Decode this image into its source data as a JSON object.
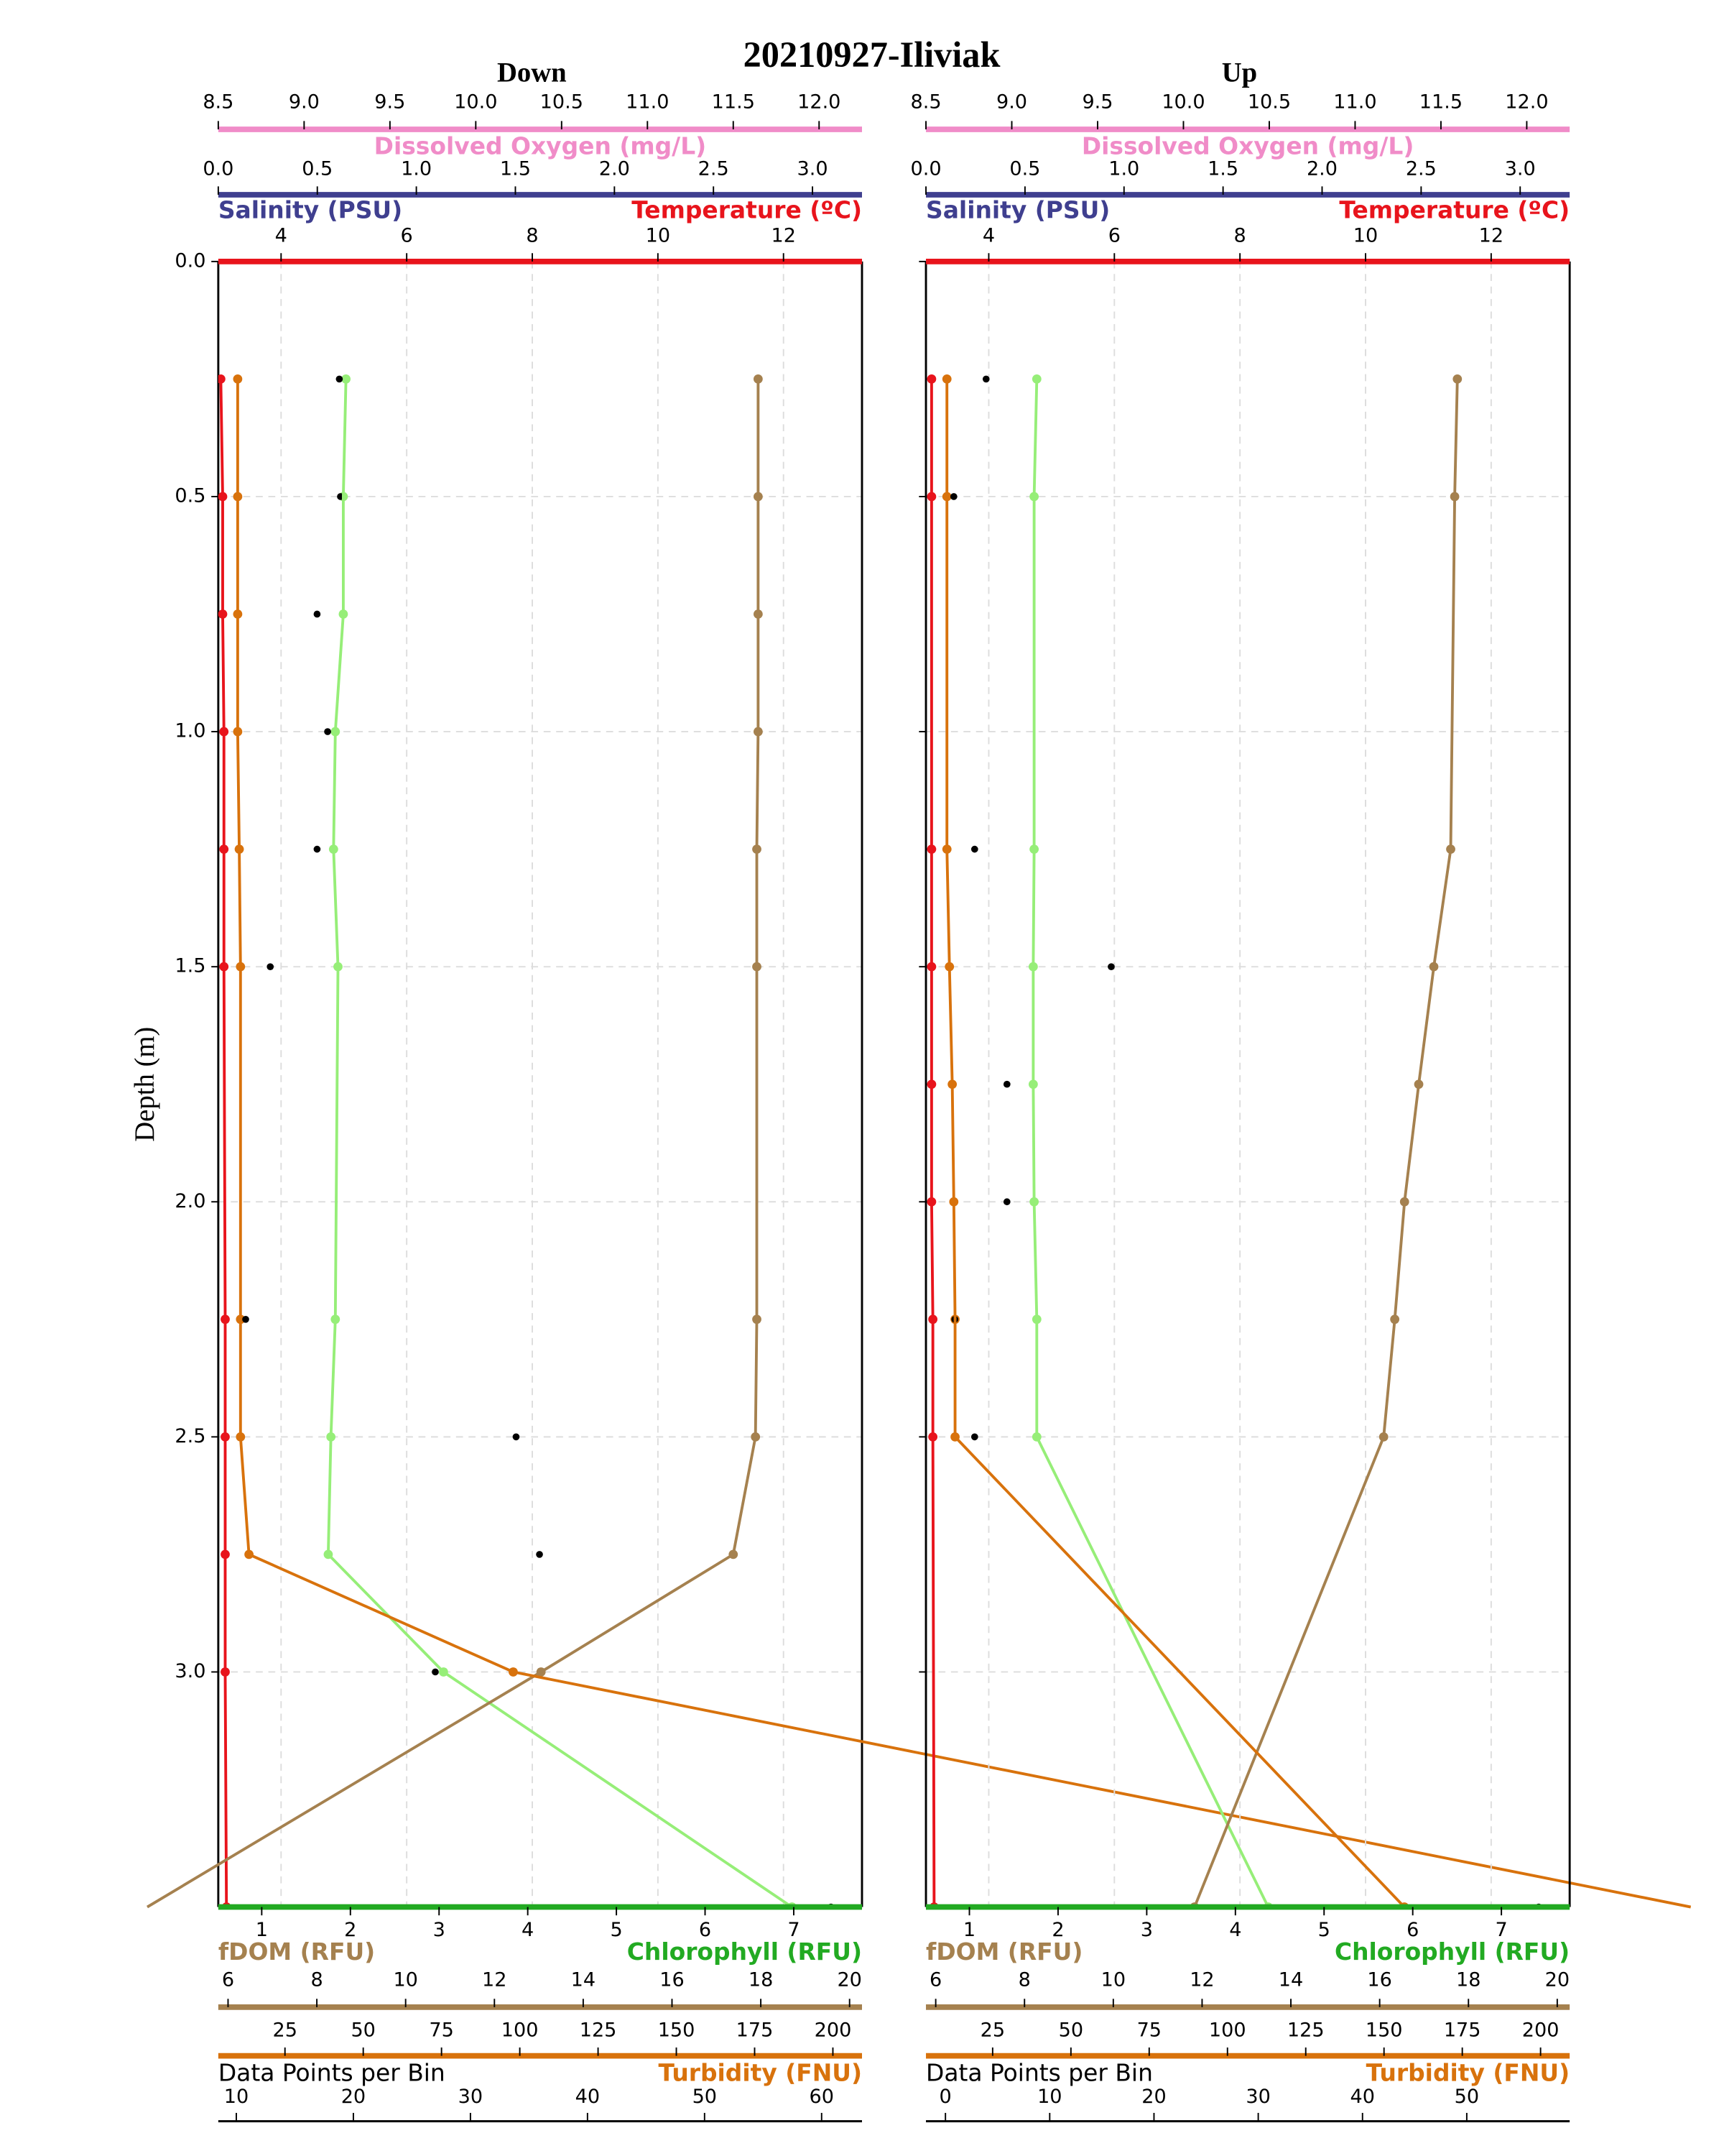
{
  "title": "20210927-Iliviak",
  "chart_data": [
    {
      "type": "line",
      "title": "Down",
      "ylabel": "Depth (m)",
      "ylim": [
        0,
        3.5
      ],
      "y_inverted": true,
      "ytick_labels": true,
      "yticks": [
        {
          "value": 0,
          "label": "0.0"
        },
        0.5,
        {
          "value": 1,
          "label": "1.0"
        },
        1.5,
        {
          "value": 2,
          "label": "2.0"
        },
        2.5,
        {
          "value": 3,
          "label": "3.0"
        }
      ],
      "grid": true,
      "depth": [
        0.25,
        0.5,
        0.75,
        1.0,
        1.25,
        1.5,
        2.25,
        2.5,
        2.75,
        3.0,
        3.5
      ],
      "axes": [
        {
          "label": "Dissolved Oxygen (mg/L)",
          "color": "#f08cc8",
          "xlim": [
            8.5,
            12.25
          ],
          "xticks": [
            8.5,
            {
              "value": 9,
              "label": "9.0"
            },
            9.5,
            {
              "value": 10,
              "label": "10.0"
            },
            10.5,
            {
              "value": 11,
              "label": "11.0"
            },
            11.5,
            {
              "value": 12,
              "label": "12.0"
            }
          ]
        },
        {
          "label": "Salinity (PSU)",
          "color": "#3f3f8f",
          "xlim": [
            0,
            3.25
          ],
          "xticks": [
            {
              "value": 0,
              "label": "0.0"
            },
            0.5,
            {
              "value": 1,
              "label": "1.0"
            },
            1.5,
            {
              "value": 2,
              "label": "2.0"
            },
            2.5,
            {
              "value": 3,
              "label": "3.0"
            }
          ]
        },
        {
          "label": "Temperature (ºC)",
          "color": "#e8141c",
          "xlim": [
            3.0,
            13.25
          ],
          "xticks": [
            4,
            6,
            8,
            10,
            12
          ],
          "grid": true,
          "style": "line",
          "line_color": "#e8141c",
          "values": [
            3.04,
            3.07,
            3.07,
            3.09,
            3.09,
            3.09,
            3.11,
            3.11,
            3.11,
            3.11,
            3.13
          ]
        },
        {
          "label": "Chlorophyll (RFU)",
          "color": "#22aa22",
          "xlim": [
            0.51,
            7.77
          ],
          "xticks": [
            1,
            2,
            3,
            4,
            5,
            6,
            7
          ],
          "style": "line",
          "line_color": "#96ee78",
          "values": [
            1.95,
            1.92,
            1.92,
            1.83,
            1.81,
            1.86,
            1.83,
            1.78,
            1.75,
            3.05,
            6.98
          ]
        },
        {
          "label": "fDOM (RFU)",
          "color": "#a5814f",
          "xlim": [
            5.78,
            20.28
          ],
          "xticks": [
            6,
            8,
            10,
            12,
            14,
            16,
            18,
            20
          ],
          "style": "line",
          "line_color": "#a5814f",
          "values": [
            17.94,
            17.94,
            17.94,
            17.94,
            17.91,
            17.91,
            17.91,
            17.88,
            17.38,
            13.05,
            4.18
          ]
        },
        {
          "label": "Turbidity (FNU)",
          "color": "#d8720c",
          "xlim": [
            3.7,
            209.3
          ],
          "xticks": [
            25,
            50,
            75,
            100,
            125,
            150,
            175,
            200
          ],
          "style": "line",
          "line_color": "#d8720c",
          "values": [
            9.9,
            9.9,
            9.9,
            9.9,
            10.4,
            10.8,
            10.8,
            10.8,
            13.5,
            97.9,
            474
          ]
        },
        {
          "label": "Data Points per Bin",
          "color": "#000000",
          "xlim": [
            8.46,
            63.45
          ],
          "xticks": [
            10,
            20,
            30,
            40,
            50,
            60
          ],
          "style": "dots",
          "line_color": "#000000",
          "values": [
            18.8,
            18.9,
            16.9,
            17.8,
            16.9,
            12.9,
            10.8,
            33.9,
            35.9,
            27.0,
            60.8
          ]
        }
      ]
    },
    {
      "type": "line",
      "title": "Up",
      "ylim": [
        0,
        3.5
      ],
      "y_inverted": true,
      "ytick_labels": false,
      "yticks": [
        0,
        0.5,
        1,
        1.5,
        2,
        2.5,
        3
      ],
      "grid": true,
      "depth": [
        0.25,
        0.5,
        1.25,
        1.5,
        1.75,
        2.0,
        2.25,
        2.5,
        3.5
      ],
      "axes": [
        {
          "label": "Dissolved Oxygen (mg/L)",
          "color": "#f08cc8",
          "xlim": [
            8.5,
            12.25
          ],
          "xticks": [
            8.5,
            {
              "value": 9,
              "label": "9.0"
            },
            9.5,
            {
              "value": 10,
              "label": "10.0"
            },
            10.5,
            {
              "value": 11,
              "label": "11.0"
            },
            11.5,
            {
              "value": 12,
              "label": "12.0"
            }
          ]
        },
        {
          "label": "Salinity (PSU)",
          "color": "#3f3f8f",
          "xlim": [
            0,
            3.25
          ],
          "xticks": [
            {
              "value": 0,
              "label": "0.0"
            },
            0.5,
            {
              "value": 1,
              "label": "1.0"
            },
            1.5,
            {
              "value": 2,
              "label": "2.0"
            },
            2.5,
            {
              "value": 3,
              "label": "3.0"
            }
          ]
        },
        {
          "label": "Temperature (ºC)",
          "color": "#e8141c",
          "xlim": [
            3.0,
            13.25
          ],
          "xticks": [
            4,
            6,
            8,
            10,
            12
          ],
          "grid": true,
          "style": "line",
          "line_color": "#e8141c",
          "values": [
            3.09,
            3.09,
            3.09,
            3.09,
            3.09,
            3.09,
            3.11,
            3.11,
            3.13
          ]
        },
        {
          "label": "Chlorophyll (RFU)",
          "color": "#22aa22",
          "xlim": [
            0.51,
            7.77
          ],
          "xticks": [
            1,
            2,
            3,
            4,
            5,
            6,
            7
          ],
          "style": "line",
          "line_color": "#96ee78",
          "values": [
            1.76,
            1.73,
            1.73,
            1.72,
            1.72,
            1.73,
            1.76,
            1.76,
            4.37
          ]
        },
        {
          "label": "fDOM (RFU)",
          "color": "#a5814f",
          "xlim": [
            5.78,
            20.28
          ],
          "xticks": [
            6,
            8,
            10,
            12,
            14,
            16,
            18,
            20
          ],
          "style": "line",
          "line_color": "#a5814f",
          "values": [
            17.75,
            17.69,
            17.6,
            17.22,
            16.88,
            16.56,
            16.34,
            16.09,
            11.83
          ]
        },
        {
          "label": "Turbidity (FNU)",
          "color": "#d8720c",
          "xlim": [
            3.7,
            209.3
          ],
          "xticks": [
            25,
            50,
            75,
            100,
            125,
            150,
            175,
            200
          ],
          "style": "line",
          "line_color": "#d8720c",
          "values": [
            10.4,
            10.4,
            10.4,
            11.2,
            12.1,
            12.6,
            13.0,
            13.0,
            156.5
          ]
        },
        {
          "label": "Data Points per Bin",
          "color": "#000000",
          "xlim": [
            -1.87,
            59.87
          ],
          "xticks": [
            0,
            10,
            20,
            30,
            40,
            50
          ],
          "style": "dots",
          "line_color": "#000000",
          "values": [
            3.9,
            0.8,
            2.8,
            15.9,
            5.9,
            5.9,
            0.9,
            2.8,
            56.9
          ]
        }
      ]
    }
  ]
}
